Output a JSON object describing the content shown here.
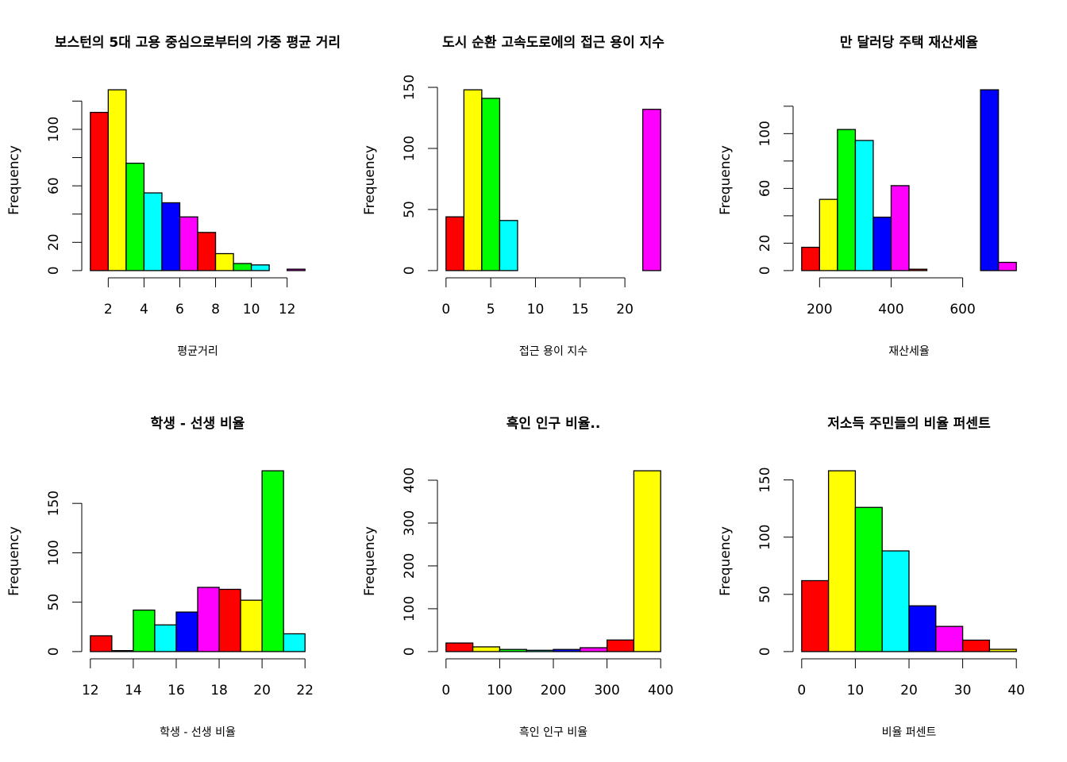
{
  "chart_data": [
    {
      "type": "histogram",
      "title": "보스턴의 5대 고용 중심으로부터의 가중 평균 거리",
      "xlabel": "평균거리",
      "ylabel": "Frequency",
      "bins": [
        1,
        2,
        3,
        4,
        5,
        6,
        7,
        8,
        9,
        10,
        11,
        12,
        13
      ],
      "values": [
        112,
        128,
        76,
        55,
        48,
        38,
        27,
        12,
        5,
        4,
        0,
        1
      ],
      "colors": [
        "#ff0000",
        "#ffff00",
        "#00ff00",
        "#00ffff",
        "#0000ff",
        "#ff00ff"
      ],
      "xlim": [
        0.52,
        13.48
      ],
      "ylim": [
        -5.12,
        133.12
      ],
      "xticks": [
        2,
        4,
        6,
        8,
        10,
        12
      ],
      "yticks": [
        0,
        20,
        40,
        60,
        80,
        100,
        120
      ]
    },
    {
      "type": "histogram",
      "title": "도시 순환 고속도로에의 접근 용이 지수",
      "xlabel": "접근 용이 지수",
      "ylabel": "Frequency",
      "bins": [
        0,
        2,
        4,
        6,
        8,
        10,
        12,
        14,
        16,
        18,
        20,
        22,
        24
      ],
      "values": [
        44,
        148,
        141,
        41,
        0,
        0,
        0,
        0,
        0,
        0,
        0,
        132
      ],
      "colors": [
        "#ff0000",
        "#ffff00",
        "#00ff00",
        "#00ffff",
        "#0000ff",
        "#ff00ff"
      ],
      "xlim": [
        -0.96,
        24.96
      ],
      "ylim": [
        -5.92,
        153.92
      ],
      "xticks": [
        0,
        5,
        10,
        15,
        20
      ],
      "yticks": [
        0,
        50,
        100,
        150
      ]
    },
    {
      "type": "histogram",
      "title": "만 달러당 주택 재산세율",
      "xlabel": "재산세율",
      "ylabel": "Frequency",
      "bins": [
        150,
        200,
        250,
        300,
        350,
        400,
        450,
        500,
        550,
        600,
        650,
        700,
        750
      ],
      "values": [
        17,
        52,
        103,
        95,
        39,
        62,
        1,
        0,
        0,
        0,
        132,
        6
      ],
      "colors": [
        "#ff0000",
        "#ffff00",
        "#00ff00",
        "#00ffff",
        "#0000ff",
        "#ff00ff"
      ],
      "xlim": [
        126,
        774
      ],
      "ylim": [
        -5.28,
        137.28
      ],
      "xticks": [
        200,
        400,
        600
      ],
      "yticks": [
        0,
        20,
        40,
        60,
        80,
        100,
        120
      ]
    },
    {
      "type": "histogram",
      "title": "학생 - 선생 비율",
      "xlabel": "학생 - 선생 비율",
      "ylabel": "Frequency",
      "bins": [
        12,
        13,
        14,
        15,
        16,
        17,
        18,
        19,
        20,
        21,
        22
      ],
      "values": [
        16,
        1,
        42,
        27,
        40,
        65,
        63,
        52,
        183,
        18
      ],
      "colors": [
        "#ff0000",
        "#ffff00",
        "#00ff00",
        "#00ffff",
        "#0000ff",
        "#ff00ff"
      ],
      "xlim": [
        11.6,
        22.4
      ],
      "ylim": [
        -7.32,
        190.32
      ],
      "xticks": [
        12,
        14,
        16,
        18,
        20,
        22
      ],
      "yticks": [
        0,
        50,
        100,
        150
      ]
    },
    {
      "type": "histogram",
      "title": "흑인 인구 비율..",
      "xlabel": "흑인 인구 비율",
      "ylabel": "Frequency",
      "bins": [
        0,
        50,
        100,
        150,
        200,
        250,
        300,
        350,
        400
      ],
      "values": [
        20,
        11,
        5,
        3,
        5,
        9,
        27,
        422
      ],
      "colors": [
        "#ff0000",
        "#ffff00",
        "#00ff00",
        "#00ffff",
        "#0000ff",
        "#ff00ff"
      ],
      "xlim": [
        -16,
        416
      ],
      "ylim": [
        -16.88,
        438.88
      ],
      "xticks": [
        0,
        100,
        200,
        300,
        400
      ],
      "yticks": [
        0,
        100,
        200,
        300,
        400
      ]
    },
    {
      "type": "histogram",
      "title": "저소득 주민들의 비율 퍼센트",
      "xlabel": "비율 퍼센트",
      "ylabel": "Frequency",
      "bins": [
        0,
        5,
        10,
        15,
        20,
        25,
        30,
        35,
        40
      ],
      "values": [
        62,
        158,
        126,
        88,
        40,
        22,
        10,
        2
      ],
      "colors": [
        "#ff0000",
        "#ffff00",
        "#00ff00",
        "#00ffff",
        "#0000ff",
        "#ff00ff"
      ],
      "xlim": [
        -1.6,
        41.6
      ],
      "ylim": [
        -6.32,
        164.32
      ],
      "xticks": [
        0,
        10,
        20,
        30,
        40
      ],
      "yticks": [
        0,
        50,
        100,
        150
      ]
    }
  ]
}
